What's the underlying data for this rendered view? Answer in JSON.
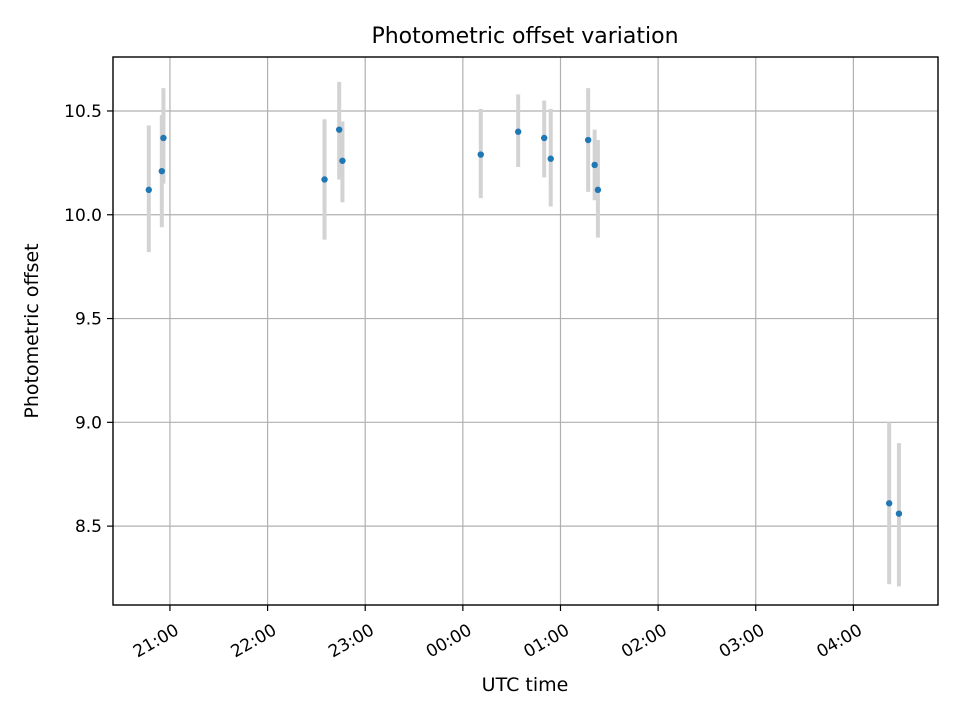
{
  "chart_data": {
    "type": "scatter",
    "title": "Photometric offset variation",
    "xlabel": "UTC time",
    "ylabel": "Photometric offset",
    "x_axis": {
      "min": "20:25",
      "max": "04:52",
      "ticks": [
        "21:00",
        "22:00",
        "23:00",
        "00:00",
        "01:00",
        "02:00",
        "03:00",
        "04:00"
      ]
    },
    "ylim": [
      8.12,
      10.76
    ],
    "y_ticks": [
      "8.5",
      "9.0",
      "9.5",
      "10.0",
      "10.5"
    ],
    "grid": true,
    "colors": {
      "point": "#1f77b4",
      "errorbar": "#d3d3d3"
    },
    "points": [
      {
        "x": "20:47",
        "y": 10.12,
        "err_low": 9.82,
        "err_high": 10.43
      },
      {
        "x": "20:55",
        "y": 10.21,
        "err_low": 9.94,
        "err_high": 10.48
      },
      {
        "x": "20:56",
        "y": 10.37,
        "err_low": 10.15,
        "err_high": 10.61
      },
      {
        "x": "22:35",
        "y": 10.17,
        "err_low": 9.88,
        "err_high": 10.46
      },
      {
        "x": "22:44",
        "y": 10.41,
        "err_low": 10.17,
        "err_high": 10.64
      },
      {
        "x": "22:46",
        "y": 10.26,
        "err_low": 10.06,
        "err_high": 10.45
      },
      {
        "x": "00:11",
        "y": 10.29,
        "err_low": 10.08,
        "err_high": 10.51
      },
      {
        "x": "00:34",
        "y": 10.4,
        "err_low": 10.23,
        "err_high": 10.58
      },
      {
        "x": "00:50",
        "y": 10.37,
        "err_low": 10.18,
        "err_high": 10.55
      },
      {
        "x": "00:54",
        "y": 10.27,
        "err_low": 10.04,
        "err_high": 10.51
      },
      {
        "x": "01:17",
        "y": 10.36,
        "err_low": 10.11,
        "err_high": 10.61
      },
      {
        "x": "01:21",
        "y": 10.24,
        "err_low": 10.07,
        "err_high": 10.41
      },
      {
        "x": "01:23",
        "y": 10.12,
        "err_low": 9.89,
        "err_high": 10.36
      },
      {
        "x": "04:22",
        "y": 8.61,
        "err_low": 8.22,
        "err_high": 9.0
      },
      {
        "x": "04:28",
        "y": 8.56,
        "err_low": 8.21,
        "err_high": 8.9
      }
    ]
  }
}
